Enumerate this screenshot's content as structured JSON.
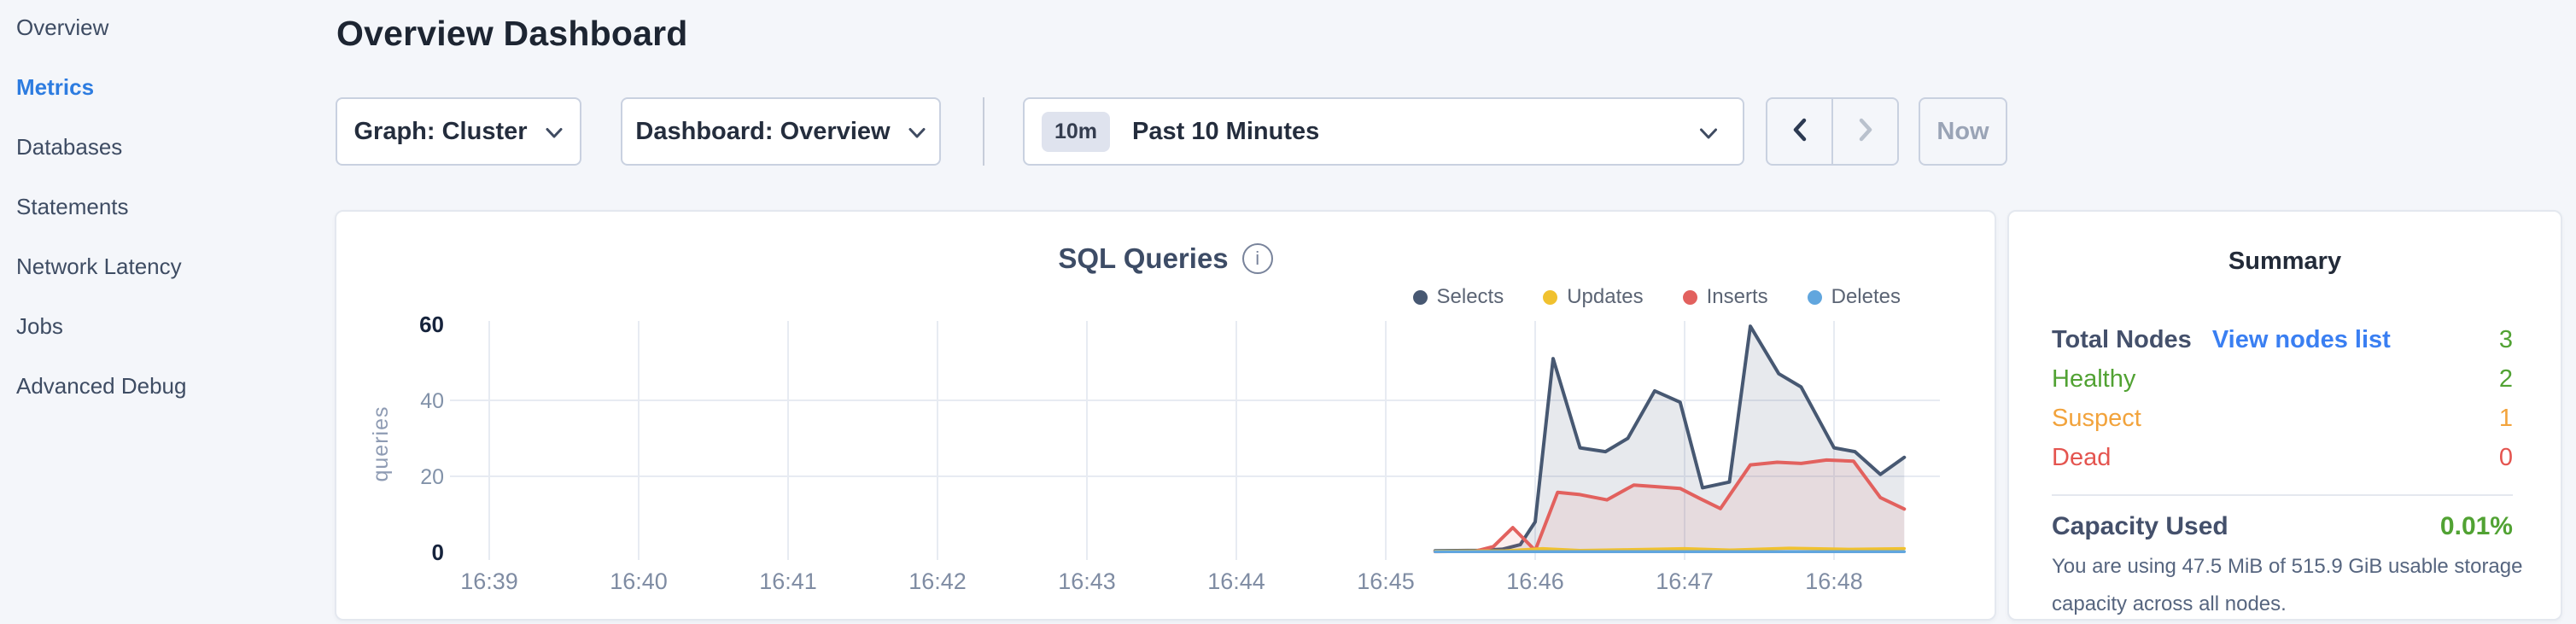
{
  "header": {
    "title": "Overview Dashboard"
  },
  "sidebar": {
    "items": [
      {
        "label": "Overview",
        "active": false
      },
      {
        "label": "Metrics",
        "active": true
      },
      {
        "label": "Databases",
        "active": false
      },
      {
        "label": "Statements",
        "active": false
      },
      {
        "label": "Network Latency",
        "active": false
      },
      {
        "label": "Jobs",
        "active": false
      },
      {
        "label": "Advanced Debug",
        "active": false
      }
    ]
  },
  "controls": {
    "graph_dropdown_label": "Graph: Cluster",
    "dashboard_dropdown_label": "Dashboard: Overview",
    "time_picker": {
      "badge": "10m",
      "label": "Past 10 Minutes"
    },
    "prev_enabled": true,
    "next_enabled": false,
    "now_label": "Now"
  },
  "chart_data": {
    "type": "area",
    "title": "SQL Queries",
    "ylabel": "queries",
    "ylim": [
      0,
      60
    ],
    "yticks": [
      0,
      20,
      40,
      60
    ],
    "xticks": [
      "16:39",
      "16:40",
      "16:41",
      "16:42",
      "16:43",
      "16:44",
      "16:45",
      "16:46",
      "16:47",
      "16:48"
    ],
    "x_unit": "minutes after 16:39",
    "grid": true,
    "legend_position": "top-right",
    "series": [
      {
        "name": "Selects",
        "color": "#475872",
        "fill": "rgba(71,88,114,0.13)",
        "points": [
          [
            6.33,
            0.4
          ],
          [
            6.62,
            0.5
          ],
          [
            6.78,
            0.8
          ],
          [
            6.9,
            2
          ],
          [
            7.0,
            8
          ],
          [
            7.12,
            51
          ],
          [
            7.3,
            27.5
          ],
          [
            7.47,
            26.5
          ],
          [
            7.62,
            30
          ],
          [
            7.8,
            42.5
          ],
          [
            7.97,
            39.5
          ],
          [
            8.12,
            17
          ],
          [
            8.3,
            18.5
          ],
          [
            8.44,
            59.5
          ],
          [
            8.63,
            47
          ],
          [
            8.78,
            43.5
          ],
          [
            9.0,
            27.5
          ],
          [
            9.14,
            26.5
          ],
          [
            9.31,
            20.5
          ],
          [
            9.47,
            25
          ]
        ]
      },
      {
        "name": "Updates",
        "color": "#f0c12f",
        "fill": "rgba(240,193,47,0.18)",
        "points": [
          [
            6.33,
            0.3
          ],
          [
            6.8,
            0.4
          ],
          [
            7.05,
            1
          ],
          [
            7.3,
            0.5
          ],
          [
            7.6,
            0.7
          ],
          [
            8.0,
            1
          ],
          [
            8.3,
            0.6
          ],
          [
            8.7,
            1.1
          ],
          [
            9.1,
            0.8
          ],
          [
            9.47,
            1
          ]
        ]
      },
      {
        "name": "Inserts",
        "color": "#e2615e",
        "fill": "rgba(226,97,94,0.10)",
        "points": [
          [
            6.33,
            0.2
          ],
          [
            6.6,
            0.3
          ],
          [
            6.72,
            1.5
          ],
          [
            6.85,
            6.5
          ],
          [
            7.0,
            0.5
          ],
          [
            7.15,
            15.8
          ],
          [
            7.3,
            15.2
          ],
          [
            7.48,
            13.8
          ],
          [
            7.66,
            17.7
          ],
          [
            7.8,
            17.3
          ],
          [
            7.97,
            16.8
          ],
          [
            8.1,
            14.2
          ],
          [
            8.24,
            11.5
          ],
          [
            8.44,
            23
          ],
          [
            8.62,
            23.7
          ],
          [
            8.78,
            23.4
          ],
          [
            8.95,
            24.3
          ],
          [
            9.13,
            24
          ],
          [
            9.31,
            14.4
          ],
          [
            9.47,
            11.4
          ]
        ]
      },
      {
        "name": "Deletes",
        "color": "#61a6de",
        "fill": "rgba(97,166,222,0.15)",
        "points": [
          [
            6.33,
            0.15
          ],
          [
            9.47,
            0.15
          ]
        ]
      }
    ]
  },
  "summary": {
    "title": "Summary",
    "total_nodes": {
      "label": "Total Nodes",
      "link": "View nodes list",
      "value": "3"
    },
    "rows": [
      {
        "label": "Healthy",
        "value": "2",
        "color": "#51a233"
      },
      {
        "label": "Suspect",
        "value": "1",
        "color": "#f2a33c"
      },
      {
        "label": "Dead",
        "value": "0",
        "color": "#e4544f"
      }
    ],
    "capacity": {
      "label": "Capacity Used",
      "value": "0.01%",
      "description": "You are using 47.5 MiB of 515.9 GiB usable storage capacity across all nodes."
    }
  },
  "colors": {
    "page_bg": "#f4f6fa",
    "card_bg": "#ffffff",
    "active_nav": "#2d7ce0",
    "link": "#3a7ff2",
    "green": "#51a233",
    "orange": "#f2a33c",
    "red": "#e4544f",
    "control_border": "#c9d1e0",
    "gridline": "#e7ebf2"
  }
}
